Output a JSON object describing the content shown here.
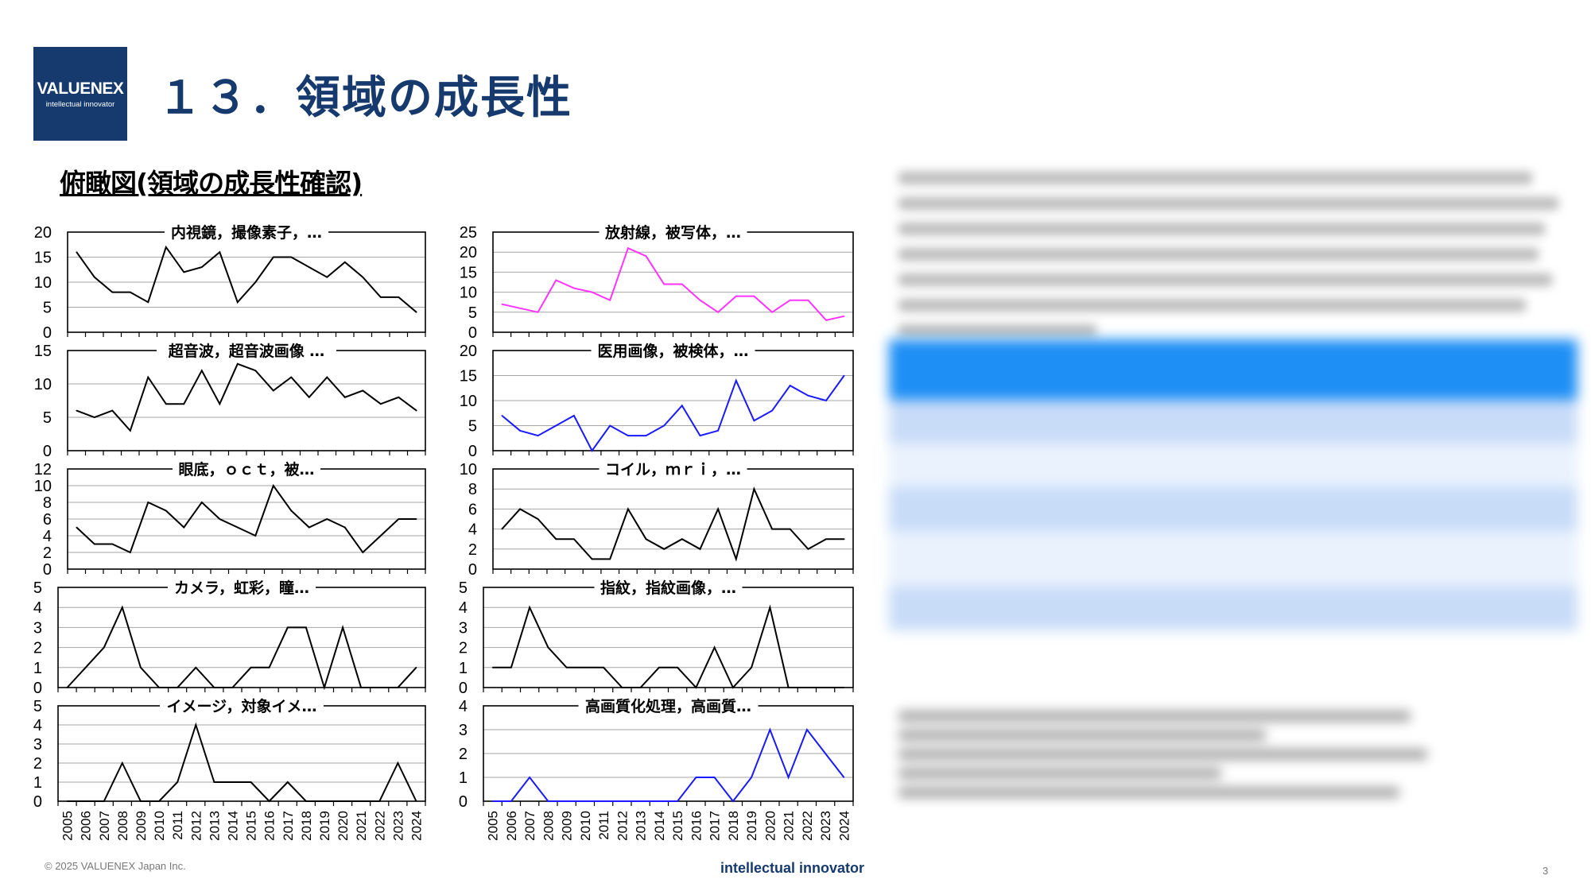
{
  "header": {
    "logo_line1": "VALUENEX",
    "logo_line2": "intellectual innovator",
    "title": "１３．領域の成長性"
  },
  "section_title": "俯瞰図(領域の成長性確認)",
  "footer": {
    "copyright": "© 2025 VALUENEX Japan Inc.",
    "tagline": "intellectual innovator",
    "page_number": "3"
  },
  "colors": {
    "brand": "#163a6e",
    "black": "#000000",
    "magenta": "#ff33ff",
    "blue": "#1a1aff"
  },
  "chart_data": [
    {
      "type": "line",
      "title": "内視鏡，撮像素子，…",
      "color": "black",
      "x": [
        "2005",
        "2006",
        "2007",
        "2008",
        "2009",
        "2010",
        "2011",
        "2012",
        "2013",
        "2014",
        "2015",
        "2016",
        "2017",
        "2018",
        "2019",
        "2020",
        "2021",
        "2022",
        "2023",
        "2024"
      ],
      "values": [
        16,
        11,
        8,
        8,
        6,
        17,
        12,
        13,
        16,
        6,
        10,
        15,
        15,
        13,
        11,
        14,
        11,
        7,
        7,
        4
      ],
      "ylim": [
        0,
        20
      ],
      "yticks": [
        0,
        5,
        10,
        15,
        20
      ]
    },
    {
      "type": "line",
      "title": "放射線，被写体，…",
      "color": "magenta",
      "x": [
        "2005",
        "2006",
        "2007",
        "2008",
        "2009",
        "2010",
        "2011",
        "2012",
        "2013",
        "2014",
        "2015",
        "2016",
        "2017",
        "2018",
        "2019",
        "2020",
        "2021",
        "2022",
        "2023",
        "2024"
      ],
      "values": [
        7,
        6,
        5,
        13,
        11,
        10,
        8,
        21,
        19,
        12,
        12,
        8,
        5,
        9,
        9,
        5,
        8,
        8,
        3,
        4
      ],
      "ylim": [
        0,
        25
      ],
      "yticks": [
        0,
        5,
        10,
        15,
        20,
        25
      ]
    },
    {
      "type": "line",
      "title": "超音波，超音波画像 …",
      "color": "black",
      "x": [
        "2005",
        "2006",
        "2007",
        "2008",
        "2009",
        "2010",
        "2011",
        "2012",
        "2013",
        "2014",
        "2015",
        "2016",
        "2017",
        "2018",
        "2019",
        "2020",
        "2021",
        "2022",
        "2023",
        "2024"
      ],
      "values": [
        6,
        5,
        6,
        3,
        11,
        7,
        7,
        12,
        7,
        13,
        12,
        9,
        11,
        8,
        11,
        8,
        9,
        7,
        8,
        6
      ],
      "ylim": [
        0,
        15
      ],
      "yticks": [
        0,
        5,
        10,
        15
      ]
    },
    {
      "type": "line",
      "title": "医用画像，被検体，…",
      "color": "blue",
      "x": [
        "2005",
        "2006",
        "2007",
        "2008",
        "2009",
        "2010",
        "2011",
        "2012",
        "2013",
        "2014",
        "2015",
        "2016",
        "2017",
        "2018",
        "2019",
        "2020",
        "2021",
        "2022",
        "2023",
        "2024"
      ],
      "values": [
        7,
        4,
        3,
        5,
        7,
        0,
        5,
        3,
        3,
        5,
        9,
        3,
        4,
        14,
        6,
        8,
        13,
        11,
        10,
        15
      ],
      "ylim": [
        0,
        20
      ],
      "yticks": [
        0,
        5,
        10,
        15,
        20
      ]
    },
    {
      "type": "line",
      "title": "眼底，ｏｃｔ，被…",
      "color": "black",
      "x": [
        "2005",
        "2006",
        "2007",
        "2008",
        "2009",
        "2010",
        "2011",
        "2012",
        "2013",
        "2014",
        "2015",
        "2016",
        "2017",
        "2018",
        "2019",
        "2020",
        "2021",
        "2022",
        "2023",
        "2024"
      ],
      "values": [
        5,
        3,
        3,
        2,
        8,
        7,
        5,
        8,
        6,
        5,
        4,
        10,
        7,
        5,
        6,
        5,
        2,
        4,
        6,
        6
      ],
      "ylim": [
        0,
        12
      ],
      "yticks": [
        0,
        2,
        4,
        6,
        8,
        10,
        12
      ]
    },
    {
      "type": "line",
      "title": "コイル，ｍｒｉ，…",
      "color": "black",
      "x": [
        "2005",
        "2006",
        "2007",
        "2008",
        "2009",
        "2010",
        "2011",
        "2012",
        "2013",
        "2014",
        "2015",
        "2016",
        "2017",
        "2018",
        "2019",
        "2020",
        "2021",
        "2022",
        "2023",
        "2024"
      ],
      "values": [
        4,
        6,
        5,
        3,
        3,
        1,
        1,
        6,
        3,
        2,
        3,
        2,
        6,
        1,
        8,
        4,
        4,
        2,
        3,
        3
      ],
      "ylim": [
        0,
        10
      ],
      "yticks": [
        0,
        2,
        4,
        6,
        8,
        10
      ]
    },
    {
      "type": "line",
      "title": "カメラ，虹彩，瞳…",
      "color": "black",
      "x": [
        "2005",
        "2006",
        "2007",
        "2008",
        "2009",
        "2010",
        "2011",
        "2012",
        "2013",
        "2014",
        "2015",
        "2016",
        "2017",
        "2018",
        "2019",
        "2020",
        "2021",
        "2022",
        "2023",
        "2024"
      ],
      "values": [
        0,
        1,
        2,
        4,
        1,
        0,
        0,
        1,
        0,
        0,
        1,
        1,
        3,
        3,
        0,
        3,
        0,
        0,
        0,
        1
      ],
      "ylim": [
        0,
        5
      ],
      "yticks": [
        0,
        1,
        2,
        3,
        4,
        5
      ]
    },
    {
      "type": "line",
      "title": "指紋，指紋画像，…",
      "color": "black",
      "x": [
        "2005",
        "2006",
        "2007",
        "2008",
        "2009",
        "2010",
        "2011",
        "2012",
        "2013",
        "2014",
        "2015",
        "2016",
        "2017",
        "2018",
        "2019",
        "2020",
        "2021",
        "2022",
        "2023",
        "2024"
      ],
      "values": [
        1,
        1,
        4,
        2,
        1,
        1,
        1,
        0,
        0,
        1,
        1,
        0,
        2,
        0,
        1,
        4,
        0,
        0,
        0,
        0
      ],
      "ylim": [
        0,
        5
      ],
      "yticks": [
        0,
        1,
        2,
        3,
        4,
        5
      ]
    },
    {
      "type": "line",
      "title": "イメージ，対象イメ…",
      "color": "black",
      "x": [
        "2005",
        "2006",
        "2007",
        "2008",
        "2009",
        "2010",
        "2011",
        "2012",
        "2013",
        "2014",
        "2015",
        "2016",
        "2017",
        "2018",
        "2019",
        "2020",
        "2021",
        "2022",
        "2023",
        "2024"
      ],
      "values": [
        0,
        0,
        0,
        2,
        0,
        0,
        1,
        4,
        1,
        1,
        1,
        0,
        1,
        0,
        0,
        0,
        0,
        0,
        2,
        0
      ],
      "ylim": [
        0,
        5
      ],
      "yticks": [
        0,
        1,
        2,
        3,
        4,
        5
      ]
    },
    {
      "type": "line",
      "title": "高画質化処理，高画質…",
      "color": "blue",
      "x": [
        "2005",
        "2006",
        "2007",
        "2008",
        "2009",
        "2010",
        "2011",
        "2012",
        "2013",
        "2014",
        "2015",
        "2016",
        "2017",
        "2018",
        "2019",
        "2020",
        "2021",
        "2022",
        "2023",
        "2024"
      ],
      "values": [
        0,
        0,
        1,
        0,
        0,
        0,
        0,
        0,
        0,
        0,
        0,
        1,
        1,
        0,
        1,
        3,
        1,
        3,
        2,
        1
      ],
      "ylim": [
        0,
        4
      ],
      "yticks": [
        0,
        1,
        2,
        3,
        4
      ]
    }
  ]
}
